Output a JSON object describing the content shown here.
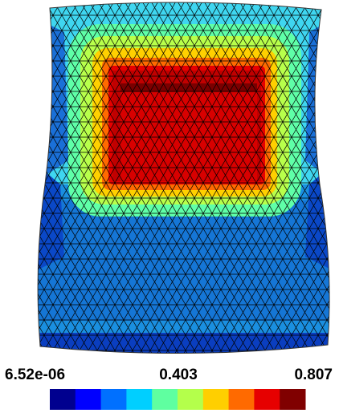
{
  "colorbar": {
    "labels": [
      "6.52e-06",
      "0.403",
      "0.807"
    ],
    "colors": [
      "#00008f",
      "#0000ff",
      "#0070ff",
      "#00cfff",
      "#5fffa0",
      "#b4ff4b",
      "#ffcf00",
      "#ff6a00",
      "#e60000",
      "#800000"
    ]
  }
}
